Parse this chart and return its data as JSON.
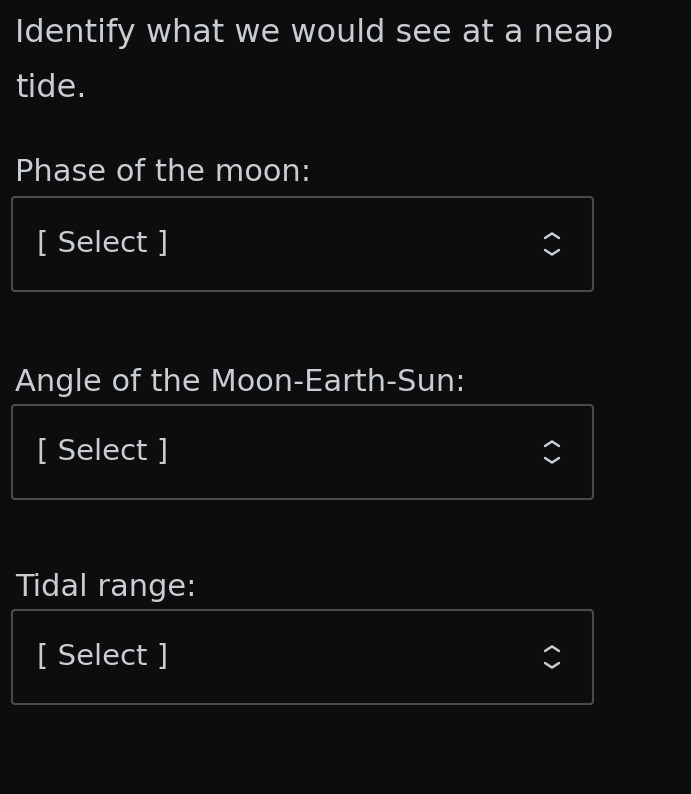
{
  "background_color": "#0d0d0d",
  "text_color": "#c8cdd4",
  "box_border_color": "#4a4a4a",
  "box_fill_color": "#0d0d0d",
  "title_line1": "Identify what we would see at a neap",
  "title_line2": "tide.",
  "label1": "Phase of the moon:",
  "label2": "Angle of the Moon-Earth-Sun:",
  "label3": "Tidal range:",
  "select_text": "[ Select ]",
  "title_fontsize": 23,
  "label_fontsize": 22,
  "select_fontsize": 21,
  "fig_width": 6.91,
  "fig_height": 7.94,
  "dpi": 100
}
